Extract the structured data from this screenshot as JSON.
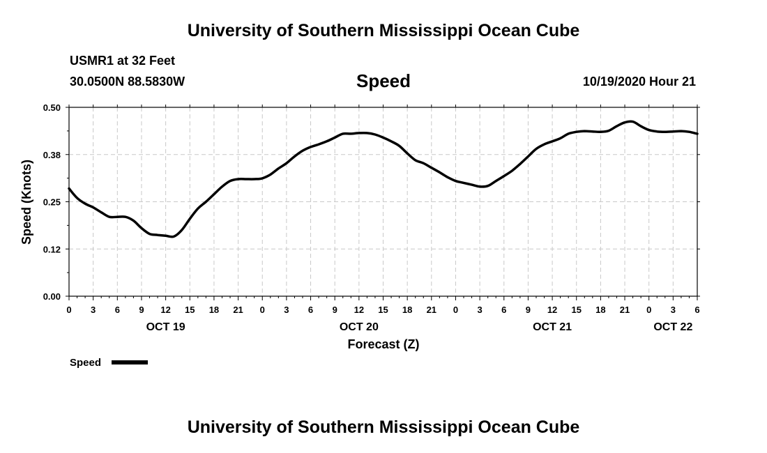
{
  "header": {
    "title_top": "University of Southern Mississippi Ocean Cube",
    "station": "USMR1 at 32 Feet",
    "coords": "30.0500N 88.5830W",
    "timestamp": "10/19/2020 Hour 21",
    "title_bottom": "University of Southern Mississippi Ocean Cube"
  },
  "chart_data": {
    "type": "line",
    "title": "Speed",
    "xlabel": "Forecast (Z)",
    "ylabel": "Speed (Knots)",
    "ylim": [
      0,
      0.5
    ],
    "yticks": [
      "0.00",
      "0.12",
      "0.25",
      "0.38",
      "0.50"
    ],
    "xlim": [
      0,
      78
    ],
    "xtick_step_hours": 3,
    "xticks": [
      "0",
      "3",
      "6",
      "9",
      "12",
      "15",
      "18",
      "21",
      "0",
      "3",
      "6",
      "9",
      "12",
      "15",
      "18",
      "21",
      "0",
      "3",
      "6",
      "9",
      "12",
      "15",
      "18",
      "21",
      "0",
      "3",
      "6"
    ],
    "date_labels": [
      {
        "hour": 12,
        "label": "OCT 19"
      },
      {
        "hour": 36,
        "label": "OCT 20"
      },
      {
        "hour": 60,
        "label": "OCT 21"
      },
      {
        "hour": 75,
        "label": "OCT 22"
      }
    ],
    "grid": true,
    "legend": {
      "position": "bottom-left",
      "label": "Speed"
    },
    "series": [
      {
        "name": "Speed",
        "color": "#000000",
        "x": [
          0,
          1,
          2,
          3,
          4,
          5,
          6,
          7,
          8,
          9,
          10,
          11,
          12,
          13,
          14,
          15,
          16,
          17,
          18,
          19,
          20,
          21,
          22,
          23,
          24,
          25,
          26,
          27,
          28,
          29,
          30,
          31,
          32,
          33,
          34,
          35,
          36,
          37,
          38,
          39,
          40,
          41,
          42,
          43,
          44,
          45,
          46,
          47,
          48,
          49,
          50,
          51,
          52,
          53,
          54,
          55,
          56,
          57,
          58,
          59,
          60,
          61,
          62,
          63,
          64,
          65,
          66,
          67,
          68,
          69,
          70,
          71,
          72,
          73,
          74,
          75,
          76,
          77,
          78
        ],
        "values": [
          0.285,
          0.26,
          0.245,
          0.235,
          0.222,
          0.21,
          0.21,
          0.21,
          0.2,
          0.18,
          0.165,
          0.162,
          0.16,
          0.158,
          0.175,
          0.205,
          0.232,
          0.25,
          0.27,
          0.29,
          0.305,
          0.31,
          0.31,
          0.31,
          0.312,
          0.322,
          0.338,
          0.352,
          0.37,
          0.385,
          0.395,
          0.402,
          0.41,
          0.42,
          0.43,
          0.43,
          0.432,
          0.432,
          0.428,
          0.42,
          0.41,
          0.398,
          0.378,
          0.36,
          0.352,
          0.34,
          0.328,
          0.315,
          0.305,
          0.3,
          0.295,
          0.29,
          0.292,
          0.305,
          0.318,
          0.332,
          0.35,
          0.37,
          0.39,
          0.402,
          0.41,
          0.418,
          0.43,
          0.435,
          0.437,
          0.436,
          0.435,
          0.438,
          0.45,
          0.46,
          0.462,
          0.45,
          0.44,
          0.436,
          0.435,
          0.436,
          0.437,
          0.435,
          0.43
        ]
      }
    ]
  }
}
